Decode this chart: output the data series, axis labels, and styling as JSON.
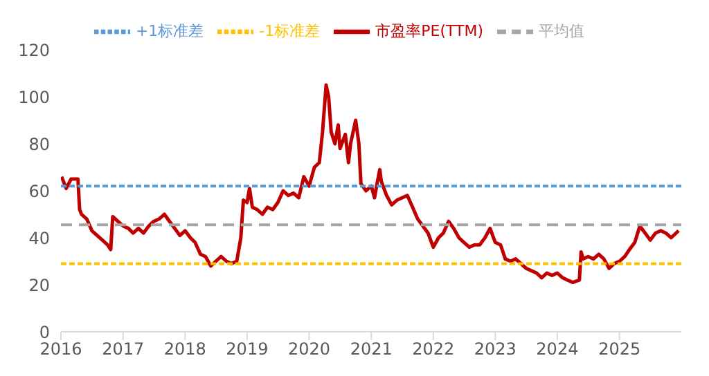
{
  "chart_data": {
    "type": "line",
    "legend": "top",
    "grid": false,
    "marker": "none",
    "xlim": [
      "2016-01-01",
      "2025-12-31"
    ],
    "xticks": [
      {
        "value": "2016-01-01",
        "label": "2016"
      },
      {
        "value": "2017-01-01",
        "label": "2017"
      },
      {
        "value": "2018-01-01",
        "label": "2018"
      },
      {
        "value": "2019-01-01",
        "label": "2019"
      },
      {
        "value": "2020-01-01",
        "label": "2020"
      },
      {
        "value": "2021-01-01",
        "label": "2021"
      },
      {
        "value": "2022-01-01",
        "label": "2022"
      },
      {
        "value": "2023-01-01",
        "label": "2023"
      },
      {
        "value": "2024-01-01",
        "label": "2024"
      },
      {
        "value": "2025-01-01",
        "label": "2025"
      }
    ],
    "ylim": [
      0,
      120
    ],
    "yticks": [
      0,
      20,
      40,
      60,
      80,
      100,
      120
    ],
    "series": [
      {
        "name": "市盈率PE(TTM)",
        "color": "#c00000",
        "line_style": "solid",
        "x": [
          "2016-01-05",
          "2016-02-01",
          "2016-03-01",
          "2016-04-10",
          "2016-04-20",
          "2016-05-01",
          "2016-06-01",
          "2016-07-01",
          "2016-08-01",
          "2016-09-01",
          "2016-10-01",
          "2016-10-20",
          "2016-11-01",
          "2016-12-01",
          "2017-01-01",
          "2017-02-01",
          "2017-03-01",
          "2017-04-01",
          "2017-05-01",
          "2017-06-01",
          "2017-07-01",
          "2017-08-01",
          "2017-09-01",
          "2017-10-01",
          "2017-11-01",
          "2017-12-01",
          "2018-01-01",
          "2018-02-01",
          "2018-03-01",
          "2018-04-01",
          "2018-05-01",
          "2018-06-01",
          "2018-07-01",
          "2018-08-01",
          "2018-09-01",
          "2018-10-01",
          "2018-11-01",
          "2018-11-25",
          "2018-12-10",
          "2019-01-01",
          "2019-01-15",
          "2019-02-01",
          "2019-03-01",
          "2019-04-01",
          "2019-05-01",
          "2019-06-01",
          "2019-07-01",
          "2019-08-01",
          "2019-09-01",
          "2019-10-01",
          "2019-11-01",
          "2019-12-01",
          "2020-01-01",
          "2020-02-01",
          "2020-03-01",
          "2020-03-20",
          "2020-04-10",
          "2020-04-25",
          "2020-05-10",
          "2020-06-01",
          "2020-06-20",
          "2020-07-01",
          "2020-08-01",
          "2020-08-20",
          "2020-09-01",
          "2020-10-01",
          "2020-10-20",
          "2020-11-01",
          "2020-12-01",
          "2021-01-01",
          "2021-01-20",
          "2021-02-01",
          "2021-02-20",
          "2021-03-01",
          "2021-04-01",
          "2021-05-01",
          "2021-06-01",
          "2021-07-01",
          "2021-08-01",
          "2021-09-01",
          "2021-10-01",
          "2021-11-01",
          "2021-12-01",
          "2022-01-01",
          "2022-02-01",
          "2022-03-01",
          "2022-04-01",
          "2022-05-01",
          "2022-06-01",
          "2022-07-01",
          "2022-08-01",
          "2022-09-01",
          "2022-10-01",
          "2022-11-01",
          "2022-12-01",
          "2023-01-01",
          "2023-02-01",
          "2023-03-01",
          "2023-04-01",
          "2023-05-01",
          "2023-06-01",
          "2023-07-01",
          "2023-08-01",
          "2023-09-01",
          "2023-10-01",
          "2023-11-01",
          "2023-12-01",
          "2024-01-01",
          "2024-02-01",
          "2024-03-01",
          "2024-04-01",
          "2024-05-10",
          "2024-05-20",
          "2024-06-01",
          "2024-07-01",
          "2024-08-01",
          "2024-09-01",
          "2024-10-01",
          "2024-11-01",
          "2024-12-01",
          "2025-01-01",
          "2025-02-01",
          "2025-03-01",
          "2025-04-01",
          "2025-05-01",
          "2025-06-01",
          "2025-07-01",
          "2025-08-01",
          "2025-09-01",
          "2025-10-01",
          "2025-11-01",
          "2025-12-15"
        ],
        "values": [
          66,
          61,
          65,
          65,
          52,
          50,
          48,
          43,
          41,
          39,
          37,
          35,
          49,
          47,
          45,
          44,
          42,
          44,
          42,
          45,
          47,
          48,
          50,
          47,
          44,
          41,
          43,
          40,
          38,
          33,
          32,
          28,
          30,
          32,
          30,
          29,
          30,
          40,
          56,
          55,
          61,
          53,
          52,
          50,
          53,
          52,
          55,
          60,
          58,
          59,
          57,
          66,
          62,
          70,
          72,
          85,
          105,
          100,
          85,
          80,
          88,
          78,
          84,
          72,
          80,
          90,
          80,
          63,
          60,
          62,
          57,
          62,
          69,
          64,
          58,
          54,
          56,
          57,
          58,
          53,
          48,
          45,
          42,
          36,
          40,
          42,
          47,
          44,
          40,
          38,
          36,
          37,
          37,
          40,
          44,
          38,
          37,
          31,
          30,
          31,
          29,
          27,
          26,
          25,
          23,
          25,
          24,
          25,
          23,
          22,
          21,
          22,
          34,
          31,
          32,
          31,
          33,
          31,
          27,
          29,
          30,
          32,
          35,
          38,
          45,
          42,
          39,
          42,
          43,
          42,
          40,
          43
        ]
      },
      {
        "name": "平均值",
        "color": "#a6a6a6",
        "line_style": "dashed",
        "x": [
          "2016-01-01",
          "2025-12-31"
        ],
        "values": [
          45.5,
          45.5
        ]
      },
      {
        "name": "+1标准差",
        "color": "#5b9bd5",
        "line_style": "dotted",
        "x": [
          "2016-01-01",
          "2025-12-31"
        ],
        "values": [
          62,
          62
        ]
      },
      {
        "name": "-1标准差",
        "color": "#ffc000",
        "line_style": "dotted",
        "x": [
          "2016-01-01",
          "2025-12-31"
        ],
        "values": [
          29,
          29
        ]
      }
    ]
  }
}
